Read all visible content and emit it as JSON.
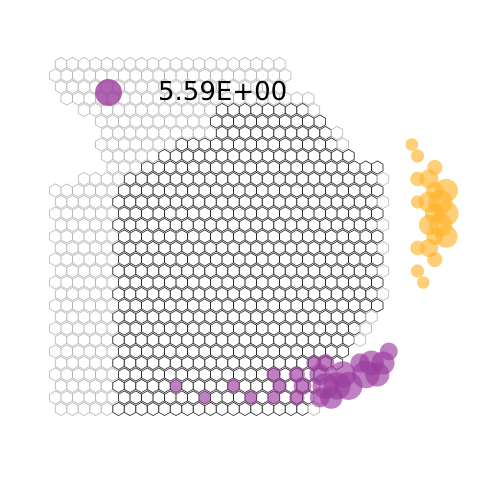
{
  "chart_data": {
    "type": "scatter",
    "subtype": "hexagonal-spot-map",
    "title": "",
    "xlabel": "",
    "ylabel": "",
    "grid": false,
    "axes_visible": false,
    "legend": {
      "placement": "top-left",
      "entries": [
        {
          "label": "5.59E+00",
          "marker_color": "#9b3c9e"
        }
      ]
    },
    "tissue_outline": {
      "in_tissue_color": "#222222",
      "out_of_tissue_color": "#b4b4b4"
    },
    "series": [
      {
        "color": "#9b3c9e",
        "points": [
          {
            "row": 28,
            "col": 25,
            "value": 5.6
          },
          {
            "row": 27,
            "col": 26,
            "value": 5.4
          },
          {
            "row": 28,
            "col": 24,
            "value": 5.2
          },
          {
            "row": 27,
            "col": 24,
            "value": 4.8
          },
          {
            "row": 28,
            "col": 23,
            "value": 4.6
          },
          {
            "row": 26,
            "col": 27,
            "value": 4.2
          },
          {
            "row": 27,
            "col": 27,
            "value": 3.8
          },
          {
            "row": 26,
            "col": 28,
            "value": 3.4
          },
          {
            "row": 29,
            "col": 23,
            "value": 3.2
          },
          {
            "row": 27,
            "col": 22,
            "value": 2.6
          },
          {
            "row": 29,
            "col": 22,
            "value": 2.2
          },
          {
            "row": 26,
            "col": 26,
            "value": 2.0
          },
          {
            "row": 28,
            "col": 21,
            "value": 1.6
          },
          {
            "row": 26,
            "col": 23,
            "value": 1.6
          },
          {
            "row": 25,
            "col": 28,
            "value": 1.6
          },
          {
            "row": 27,
            "col": 20,
            "value": 1.2
          },
          {
            "row": 29,
            "col": 20,
            "value": 1.0
          },
          {
            "row": 26,
            "col": 22,
            "value": 1.0
          },
          {
            "row": 28,
            "col": 19,
            "value": 0.8
          },
          {
            "row": 27,
            "col": 18,
            "value": 0.8
          },
          {
            "row": 29,
            "col": 16,
            "value": 0.6
          },
          {
            "row": 28,
            "col": 15,
            "value": 0.6
          },
          {
            "row": 29,
            "col": 12,
            "value": 0.5
          },
          {
            "row": 28,
            "col": 10,
            "value": 0.5
          },
          {
            "row": 29,
            "col": 18,
            "value": 0.6
          }
        ]
      },
      {
        "color": "#ffb52e",
        "points": [
          {
            "row": 13,
            "col": 33,
            "value": 4.0
          },
          {
            "row": 12,
            "col": 33,
            "value": 3.8
          },
          {
            "row": 14,
            "col": 33,
            "value": 3.6
          },
          {
            "row": 11,
            "col": 33,
            "value": 3.4
          },
          {
            "row": 15,
            "col": 33,
            "value": 3.2
          },
          {
            "row": 12,
            "col": 32,
            "value": 2.6
          },
          {
            "row": 14,
            "col": 32,
            "value": 2.4
          },
          {
            "row": 13,
            "col": 32,
            "value": 2.2
          },
          {
            "row": 10,
            "col": 32,
            "value": 2.0
          },
          {
            "row": 16,
            "col": 32,
            "value": 1.8
          },
          {
            "row": 11,
            "col": 32,
            "value": 1.6
          },
          {
            "row": 15,
            "col": 32,
            "value": 1.4
          },
          {
            "row": 9,
            "col": 32,
            "value": 1.0
          },
          {
            "row": 17,
            "col": 32,
            "value": 1.0
          },
          {
            "row": 10,
            "col": 31,
            "value": 0.8
          },
          {
            "row": 16,
            "col": 31,
            "value": 0.8
          },
          {
            "row": 8,
            "col": 31,
            "value": 0.6
          },
          {
            "row": 18,
            "col": 31,
            "value": 0.6
          },
          {
            "row": 12,
            "col": 31,
            "value": 0.6
          },
          {
            "row": 7,
            "col": 30,
            "value": 0.5
          },
          {
            "row": 19,
            "col": 31,
            "value": 0.5
          }
        ]
      }
    ]
  }
}
